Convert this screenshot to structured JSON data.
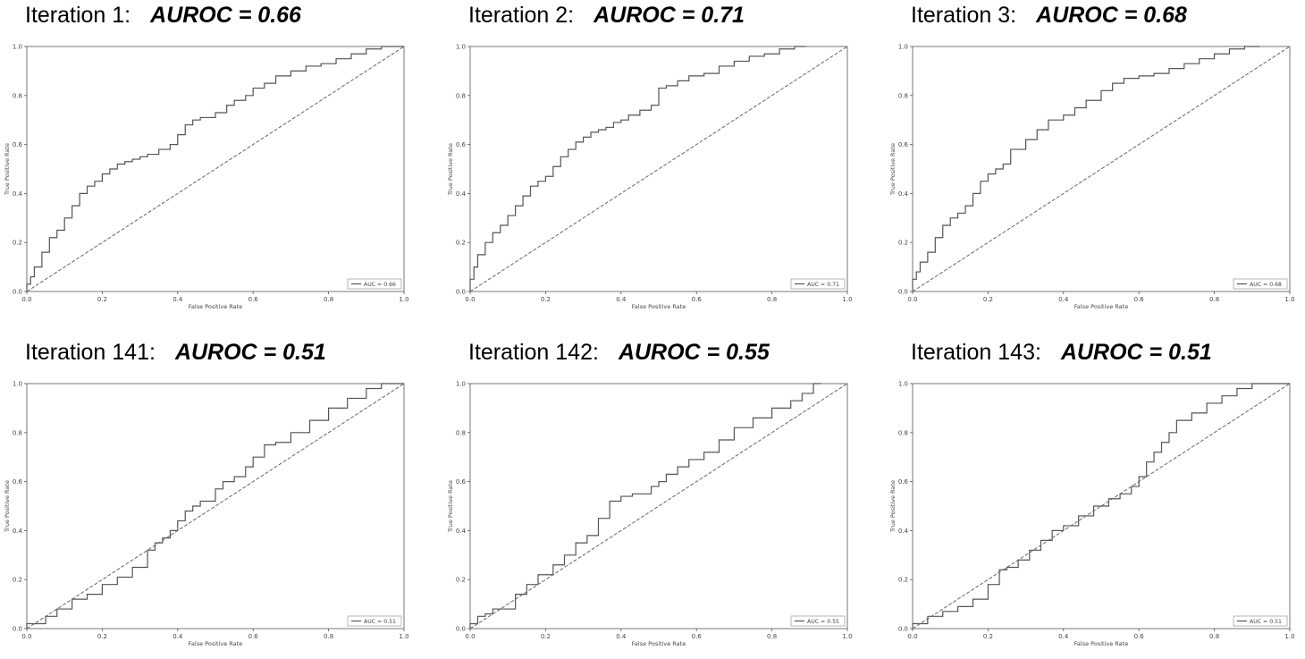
{
  "chart_data": [
    {
      "type": "line",
      "title": "Iteration 1:",
      "auroc_label": "AUROC = 0.66",
      "xlabel": "False Positive Rate",
      "ylabel": "True Positive Rate",
      "xlim": [
        0,
        1
      ],
      "ylim": [
        0,
        1
      ],
      "xticks": [
        "0.0",
        "0.2",
        "0.4",
        "0.6",
        "0.8",
        "1.0"
      ],
      "yticks": [
        "0.0",
        "0.2",
        "0.4",
        "0.6",
        "0.8",
        "1.0"
      ],
      "legend": "AUC = 0.66",
      "legend_position": "lower right",
      "grid": false,
      "series": [
        {
          "kind": "roc",
          "x": [
            0,
            0.01,
            0.02,
            0.04,
            0.06,
            0.08,
            0.1,
            0.12,
            0.14,
            0.16,
            0.18,
            0.2,
            0.22,
            0.24,
            0.26,
            0.28,
            0.3,
            0.32,
            0.35,
            0.38,
            0.4,
            0.42,
            0.44,
            0.46,
            0.5,
            0.53,
            0.55,
            0.58,
            0.6,
            0.63,
            0.66,
            0.7,
            0.74,
            0.78,
            0.82,
            0.86,
            0.9,
            0.94,
            0.98,
            1.0
          ],
          "y": [
            0,
            0.03,
            0.06,
            0.1,
            0.16,
            0.22,
            0.25,
            0.3,
            0.35,
            0.4,
            0.43,
            0.45,
            0.48,
            0.5,
            0.52,
            0.53,
            0.54,
            0.55,
            0.56,
            0.58,
            0.6,
            0.64,
            0.68,
            0.7,
            0.71,
            0.73,
            0.76,
            0.78,
            0.8,
            0.83,
            0.85,
            0.88,
            0.9,
            0.92,
            0.93,
            0.95,
            0.97,
            0.99,
            1.0,
            1.0
          ]
        },
        {
          "kind": "diagonal",
          "x": [
            0,
            1
          ],
          "y": [
            0,
            1
          ]
        }
      ]
    },
    {
      "type": "line",
      "title": "Iteration 2:",
      "auroc_label": "AUROC = 0.71",
      "xlabel": "False Positive Rate",
      "ylabel": "True Positive Rate",
      "xlim": [
        0,
        1
      ],
      "ylim": [
        0,
        1
      ],
      "xticks": [
        "0.0",
        "0.2",
        "0.4",
        "0.6",
        "0.8",
        "1.0"
      ],
      "yticks": [
        "0.0",
        "0.2",
        "0.4",
        "0.6",
        "0.8",
        "1.0"
      ],
      "legend": "AUC = 0.71",
      "legend_position": "lower right",
      "grid": false,
      "series": [
        {
          "kind": "roc",
          "x": [
            0,
            0.01,
            0.02,
            0.04,
            0.06,
            0.08,
            0.1,
            0.12,
            0.14,
            0.16,
            0.18,
            0.2,
            0.22,
            0.24,
            0.26,
            0.28,
            0.3,
            0.32,
            0.34,
            0.36,
            0.38,
            0.4,
            0.42,
            0.45,
            0.48,
            0.5,
            0.52,
            0.55,
            0.58,
            0.62,
            0.66,
            0.7,
            0.74,
            0.78,
            0.82,
            0.86,
            0.89
          ],
          "y": [
            0,
            0.05,
            0.1,
            0.15,
            0.2,
            0.24,
            0.27,
            0.31,
            0.35,
            0.39,
            0.43,
            0.45,
            0.47,
            0.51,
            0.55,
            0.58,
            0.61,
            0.63,
            0.65,
            0.66,
            0.67,
            0.69,
            0.7,
            0.72,
            0.74,
            0.76,
            0.83,
            0.84,
            0.86,
            0.88,
            0.89,
            0.92,
            0.94,
            0.96,
            0.97,
            0.99,
            1.0
          ]
        },
        {
          "kind": "diagonal",
          "x": [
            0,
            1
          ],
          "y": [
            0,
            1
          ]
        }
      ]
    },
    {
      "type": "line",
      "title": "Iteration 3:",
      "auroc_label": "AUROC = 0.68",
      "xlabel": "False Positive Rate",
      "ylabel": "True Positive Rate",
      "xlim": [
        0,
        1
      ],
      "ylim": [
        0,
        1
      ],
      "xticks": [
        "0.0",
        "0.2",
        "0.4",
        "0.6",
        "0.8",
        "1.0"
      ],
      "yticks": [
        "0.0",
        "0.2",
        "0.4",
        "0.6",
        "0.8",
        "1.0"
      ],
      "legend": "AUC = 0.68",
      "legend_position": "lower right",
      "grid": false,
      "series": [
        {
          "kind": "roc",
          "x": [
            0,
            0.01,
            0.02,
            0.04,
            0.06,
            0.08,
            0.1,
            0.12,
            0.14,
            0.16,
            0.18,
            0.2,
            0.22,
            0.24,
            0.26,
            0.3,
            0.33,
            0.36,
            0.4,
            0.43,
            0.46,
            0.5,
            0.53,
            0.56,
            0.6,
            0.64,
            0.68,
            0.72,
            0.76,
            0.8,
            0.84,
            0.88,
            0.92
          ],
          "y": [
            0,
            0.05,
            0.08,
            0.12,
            0.16,
            0.22,
            0.27,
            0.3,
            0.32,
            0.35,
            0.4,
            0.45,
            0.48,
            0.5,
            0.52,
            0.58,
            0.62,
            0.66,
            0.7,
            0.72,
            0.75,
            0.78,
            0.82,
            0.85,
            0.87,
            0.88,
            0.89,
            0.91,
            0.93,
            0.95,
            0.97,
            0.99,
            1.0
          ]
        },
        {
          "kind": "diagonal",
          "x": [
            0,
            1
          ],
          "y": [
            0,
            1
          ]
        }
      ]
    },
    {
      "type": "line",
      "title": "Iteration 141:",
      "auroc_label": "AUROC = 0.51",
      "xlabel": "False Positive Rate",
      "ylabel": "True Positive Rate",
      "xlim": [
        0,
        1
      ],
      "ylim": [
        0,
        1
      ],
      "xticks": [
        "0.0",
        "0.2",
        "0.4",
        "0.6",
        "0.8",
        "1.0"
      ],
      "yticks": [
        "0.0",
        "0.2",
        "0.4",
        "0.6",
        "0.8",
        "1.0"
      ],
      "legend": "AUC = 0.51",
      "legend_position": "lower right",
      "grid": false,
      "series": [
        {
          "kind": "roc",
          "x": [
            0,
            0.05,
            0.08,
            0.12,
            0.16,
            0.2,
            0.24,
            0.28,
            0.32,
            0.34,
            0.36,
            0.38,
            0.4,
            0.42,
            0.44,
            0.46,
            0.5,
            0.52,
            0.55,
            0.58,
            0.6,
            0.63,
            0.66,
            0.7,
            0.75,
            0.8,
            0.85,
            0.9,
            0.94,
            1.0
          ],
          "y": [
            0,
            0.02,
            0.05,
            0.08,
            0.12,
            0.14,
            0.18,
            0.21,
            0.25,
            0.32,
            0.35,
            0.37,
            0.4,
            0.44,
            0.48,
            0.5,
            0.52,
            0.57,
            0.6,
            0.62,
            0.66,
            0.7,
            0.75,
            0.76,
            0.8,
            0.85,
            0.9,
            0.94,
            0.98,
            1.0
          ]
        },
        {
          "kind": "diagonal",
          "x": [
            0,
            1
          ],
          "y": [
            0,
            1
          ]
        }
      ]
    },
    {
      "type": "line",
      "title": "Iteration 142:",
      "auroc_label": "AUROC = 0.55",
      "xlabel": "False Positive Rate",
      "ylabel": "True Positive Rate",
      "xlim": [
        0,
        1
      ],
      "ylim": [
        0,
        1
      ],
      "xticks": [
        "0.0",
        "0.2",
        "0.4",
        "0.6",
        "0.8",
        "1.0"
      ],
      "yticks": [
        "0.0",
        "0.2",
        "0.4",
        "0.6",
        "0.8",
        "1.0"
      ],
      "legend": "AUC = 0.55",
      "legend_position": "lower right",
      "grid": false,
      "series": [
        {
          "kind": "roc",
          "x": [
            0,
            0.02,
            0.04,
            0.06,
            0.12,
            0.15,
            0.18,
            0.22,
            0.25,
            0.28,
            0.31,
            0.34,
            0.37,
            0.4,
            0.43,
            0.48,
            0.5,
            0.52,
            0.55,
            0.58,
            0.62,
            0.66,
            0.7,
            0.75,
            0.8,
            0.85,
            0.88,
            0.91,
            0.93
          ],
          "y": [
            0,
            0.02,
            0.05,
            0.06,
            0.08,
            0.14,
            0.18,
            0.22,
            0.26,
            0.3,
            0.35,
            0.38,
            0.45,
            0.52,
            0.54,
            0.55,
            0.58,
            0.6,
            0.63,
            0.66,
            0.69,
            0.72,
            0.77,
            0.82,
            0.86,
            0.9,
            0.93,
            0.96,
            1.0
          ]
        },
        {
          "kind": "diagonal",
          "x": [
            0,
            1
          ],
          "y": [
            0,
            1
          ]
        }
      ]
    },
    {
      "type": "line",
      "title": "Iteration 143:",
      "auroc_label": "AUROC = 0.51",
      "xlabel": "False Positive Rate",
      "ylabel": "True Positive Rate",
      "xlim": [
        0,
        1
      ],
      "ylim": [
        0,
        1
      ],
      "xticks": [
        "0.0",
        "0.2",
        "0.4",
        "0.6",
        "0.8",
        "1.0"
      ],
      "yticks": [
        "0.0",
        "0.2",
        "0.4",
        "0.6",
        "0.8",
        "1.0"
      ],
      "legend": "AUC = 0.51",
      "legend_position": "lower right",
      "grid": false,
      "series": [
        {
          "kind": "roc",
          "x": [
            0,
            0.04,
            0.08,
            0.12,
            0.16,
            0.2,
            0.23,
            0.25,
            0.28,
            0.31,
            0.34,
            0.37,
            0.4,
            0.44,
            0.48,
            0.52,
            0.55,
            0.58,
            0.6,
            0.62,
            0.64,
            0.66,
            0.68,
            0.7,
            0.74,
            0.78,
            0.82,
            0.86,
            0.9,
            0.94,
            1.0
          ],
          "y": [
            0,
            0.02,
            0.05,
            0.07,
            0.09,
            0.12,
            0.18,
            0.24,
            0.25,
            0.28,
            0.32,
            0.36,
            0.4,
            0.42,
            0.46,
            0.5,
            0.53,
            0.55,
            0.58,
            0.62,
            0.68,
            0.72,
            0.76,
            0.8,
            0.85,
            0.88,
            0.92,
            0.95,
            0.98,
            1.0,
            1.0
          ]
        },
        {
          "kind": "diagonal",
          "x": [
            0,
            1
          ],
          "y": [
            0,
            1
          ]
        }
      ]
    }
  ]
}
